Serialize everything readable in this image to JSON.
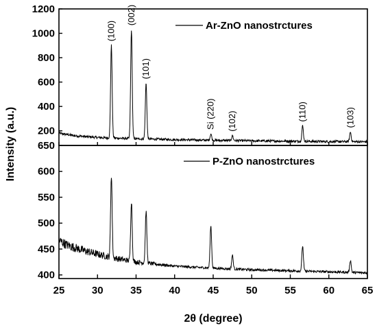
{
  "chart_data": {
    "type": "line",
    "xlabel": "2θ (degree)",
    "ylabel": "Intensity (a.u.)",
    "xlim": [
      25,
      65
    ],
    "xticks": [
      25,
      30,
      35,
      40,
      45,
      50,
      55,
      60,
      65
    ],
    "line_color": "#000000",
    "background": "#ffffff",
    "panels": [
      {
        "id": "top",
        "legend": "Ar-ZnO nanostrctures",
        "legend_position": "top-right",
        "ylim": [
          80,
          1200
        ],
        "yticks": [
          200,
          400,
          600,
          800,
          1000,
          1200
        ],
        "y_tick_labels": [
          "200",
          "400",
          "600",
          "800",
          "1000",
          "1200"
        ],
        "baseline": [
          [
            25,
            180
          ],
          [
            27,
            160
          ],
          [
            30,
            145
          ],
          [
            35,
            135
          ],
          [
            40,
            128
          ],
          [
            45,
            122
          ],
          [
            50,
            118
          ],
          [
            55,
            115
          ],
          [
            60,
            112
          ],
          [
            65,
            110
          ]
        ],
        "noise": 10,
        "peaks": [
          {
            "label": "(100)",
            "x": 31.8,
            "y": 900
          },
          {
            "label": "(002)",
            "x": 34.4,
            "y": 1030
          },
          {
            "label": "(101)",
            "x": 36.3,
            "y": 590
          },
          {
            "label": "Si (220)",
            "x": 44.7,
            "y": 175
          },
          {
            "label": "(102)",
            "x": 47.5,
            "y": 160
          },
          {
            "label": "(110)",
            "x": 56.6,
            "y": 240
          },
          {
            "label": "(103)",
            "x": 62.8,
            "y": 190
          }
        ]
      },
      {
        "id": "bottom",
        "legend": "P-ZnO nanostrctures",
        "legend_position": "top-right",
        "ylim": [
          393,
          650
        ],
        "yticks": [
          400,
          450,
          500,
          550,
          600,
          650
        ],
        "y_tick_labels": [
          "400",
          "450",
          "500",
          "550",
          "600",
          "650"
        ],
        "baseline": [
          [
            25,
            467
          ],
          [
            26,
            458
          ],
          [
            28,
            448
          ],
          [
            30,
            440
          ],
          [
            32,
            433
          ],
          [
            35,
            425
          ],
          [
            40,
            417
          ],
          [
            45,
            413
          ],
          [
            50,
            410
          ],
          [
            55,
            408
          ],
          [
            60,
            406
          ],
          [
            65,
            404
          ]
        ],
        "noise": 6,
        "peaks": [
          {
            "x": 31.8,
            "y": 593
          },
          {
            "x": 34.4,
            "y": 542
          },
          {
            "x": 36.3,
            "y": 523
          },
          {
            "x": 44.7,
            "y": 495
          },
          {
            "x": 47.5,
            "y": 438
          },
          {
            "x": 56.6,
            "y": 456
          },
          {
            "x": 62.8,
            "y": 428
          }
        ]
      }
    ]
  }
}
